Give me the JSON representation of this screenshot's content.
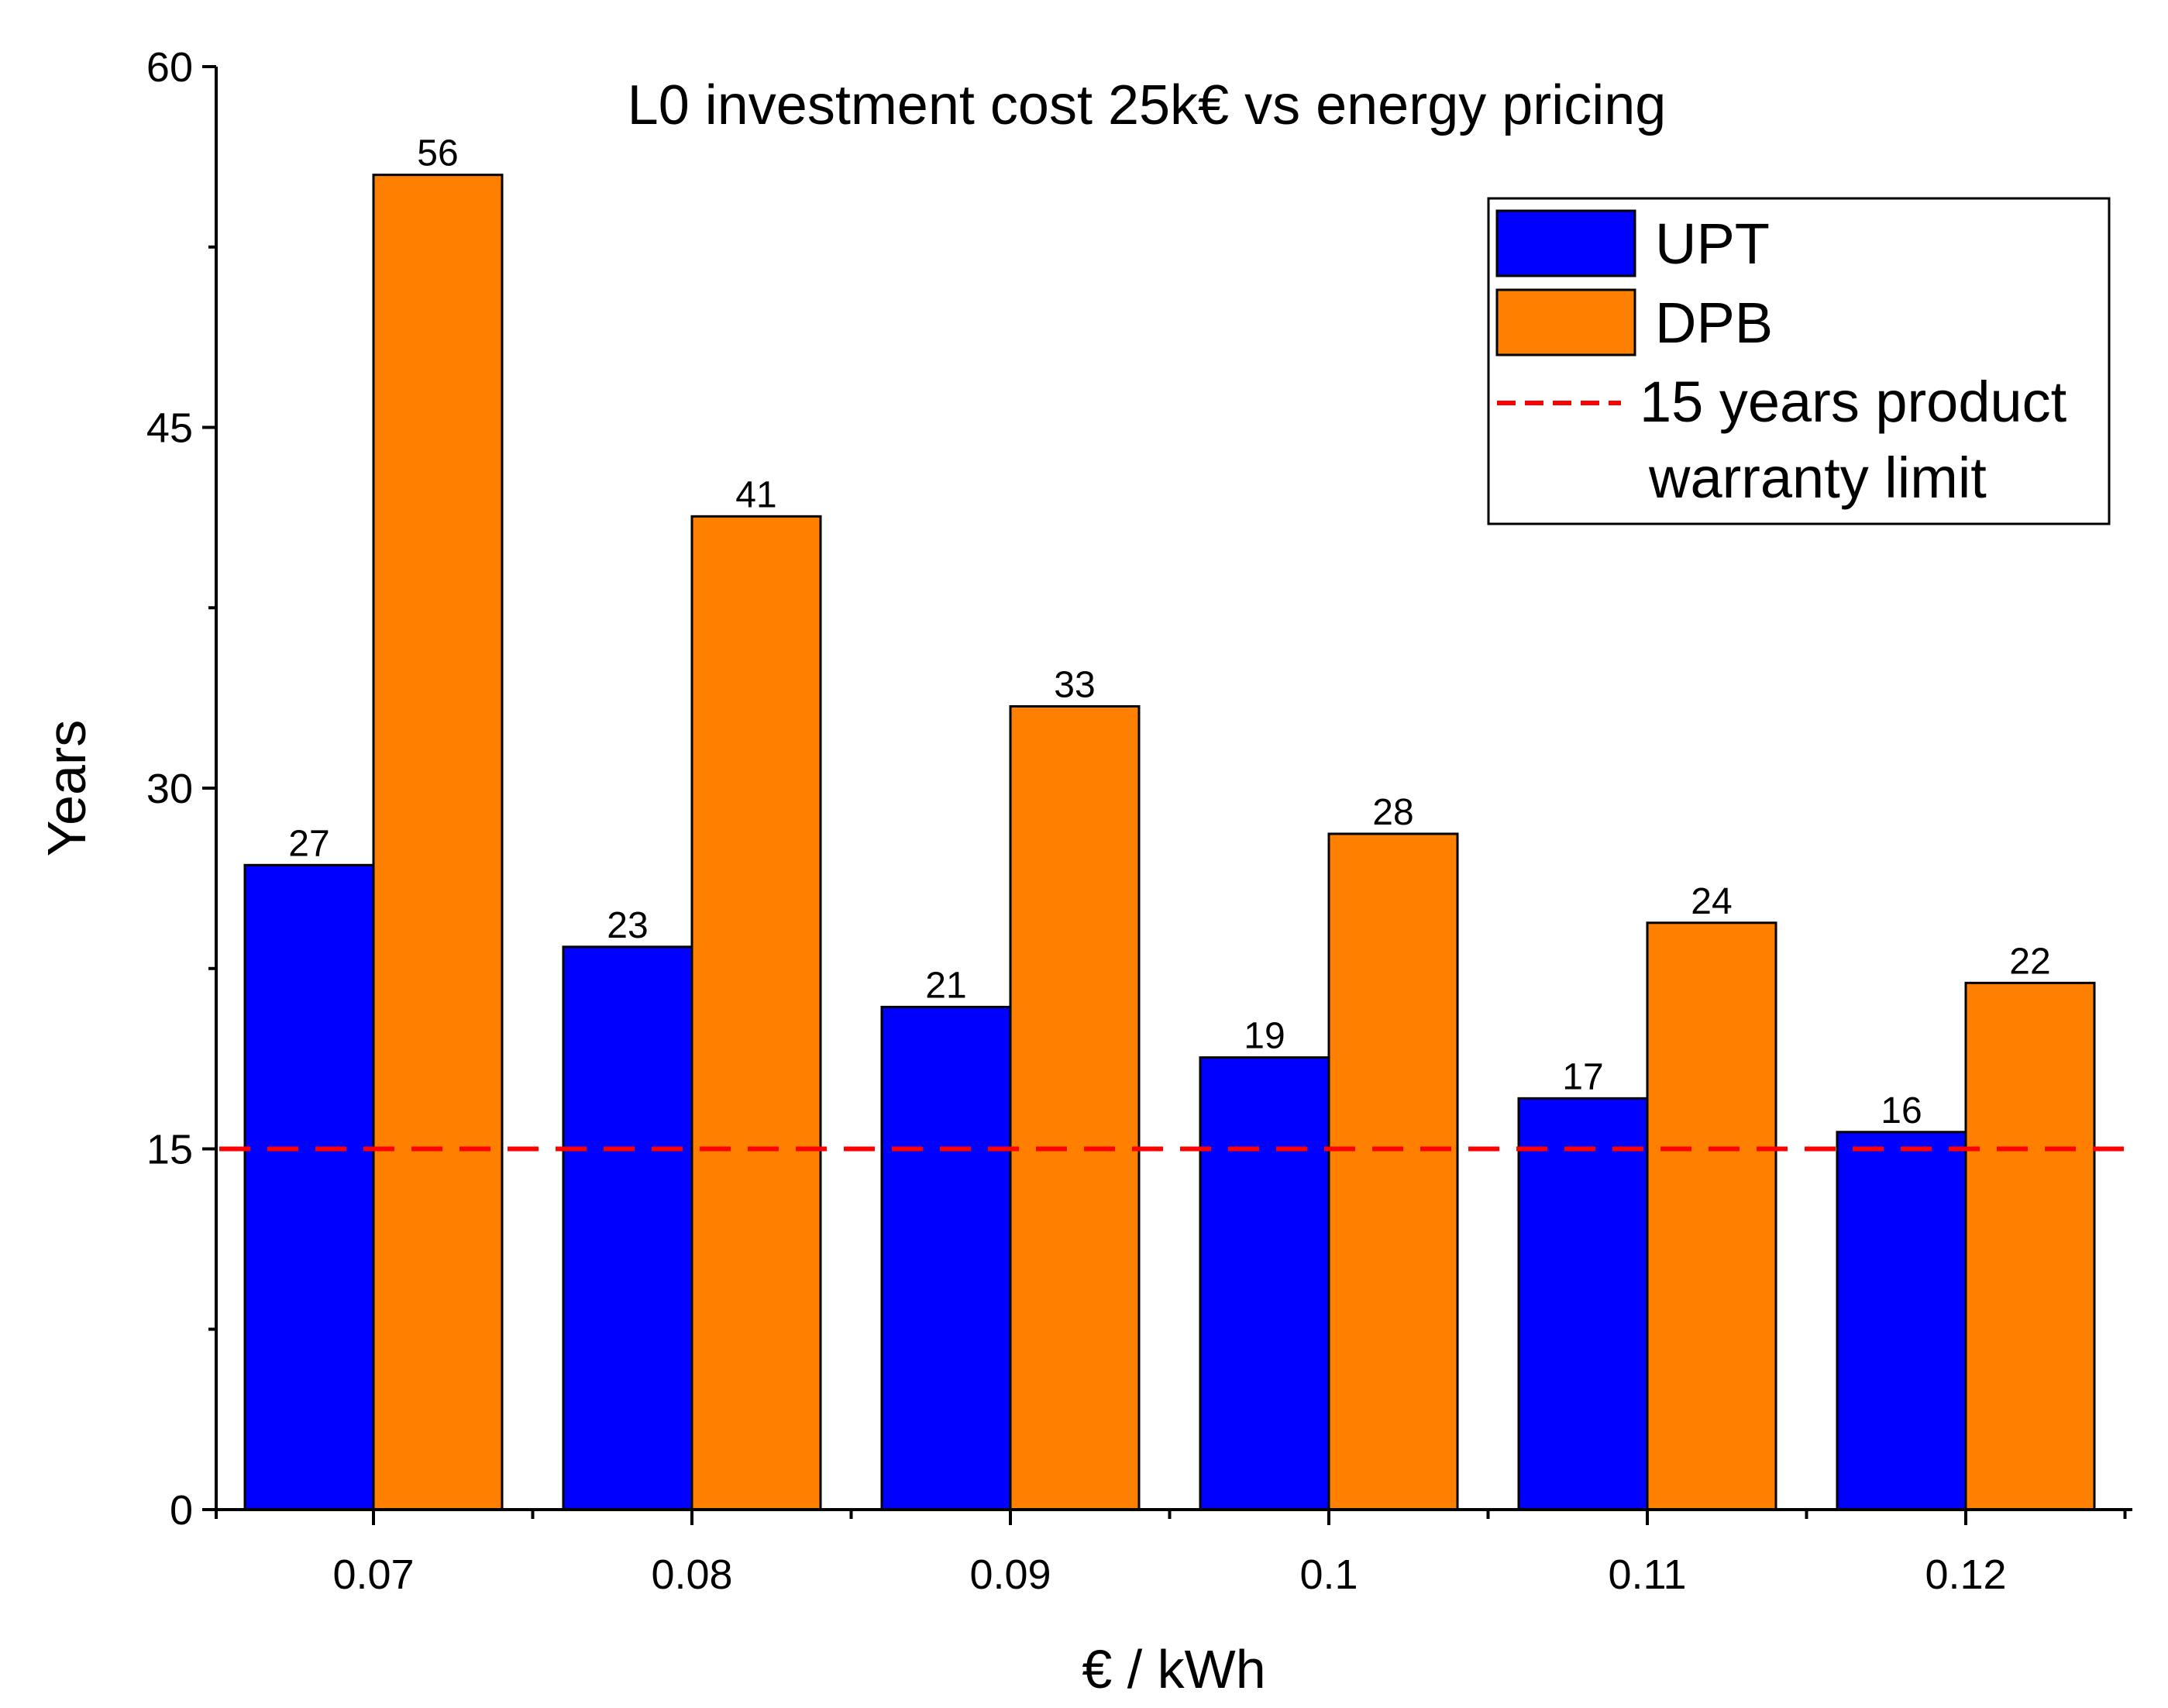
{
  "chart_data": {
    "type": "bar",
    "title": "L0 investment cost 25k€ vs energy pricing",
    "xlabel": "€ / kWh",
    "ylabel": "Years",
    "ylim": [
      0,
      60
    ],
    "yticks": [
      0,
      15,
      30,
      45,
      60
    ],
    "categories": [
      "0.07",
      "0.08",
      "0.09",
      "0.1",
      "0.11",
      "0.12"
    ],
    "series": [
      {
        "name": "UPT",
        "color": "#0000ff",
        "values": [
          26.8,
          23.4,
          20.9,
          18.8,
          17.1,
          15.7
        ],
        "labels": [
          "27",
          "23",
          "21",
          "19",
          "17",
          "16"
        ]
      },
      {
        "name": "DPB",
        "color": "#ff8000",
        "values": [
          55.5,
          41.3,
          33.4,
          28.1,
          24.4,
          21.9
        ],
        "labels": [
          "56",
          "41",
          "33",
          "28",
          "24",
          "22"
        ]
      }
    ],
    "reference_line": {
      "value": 15,
      "color": "#ff0000",
      "label_line1": "15 years product",
      "label_line2": "warranty limit"
    },
    "legend_position": "top-right"
  }
}
